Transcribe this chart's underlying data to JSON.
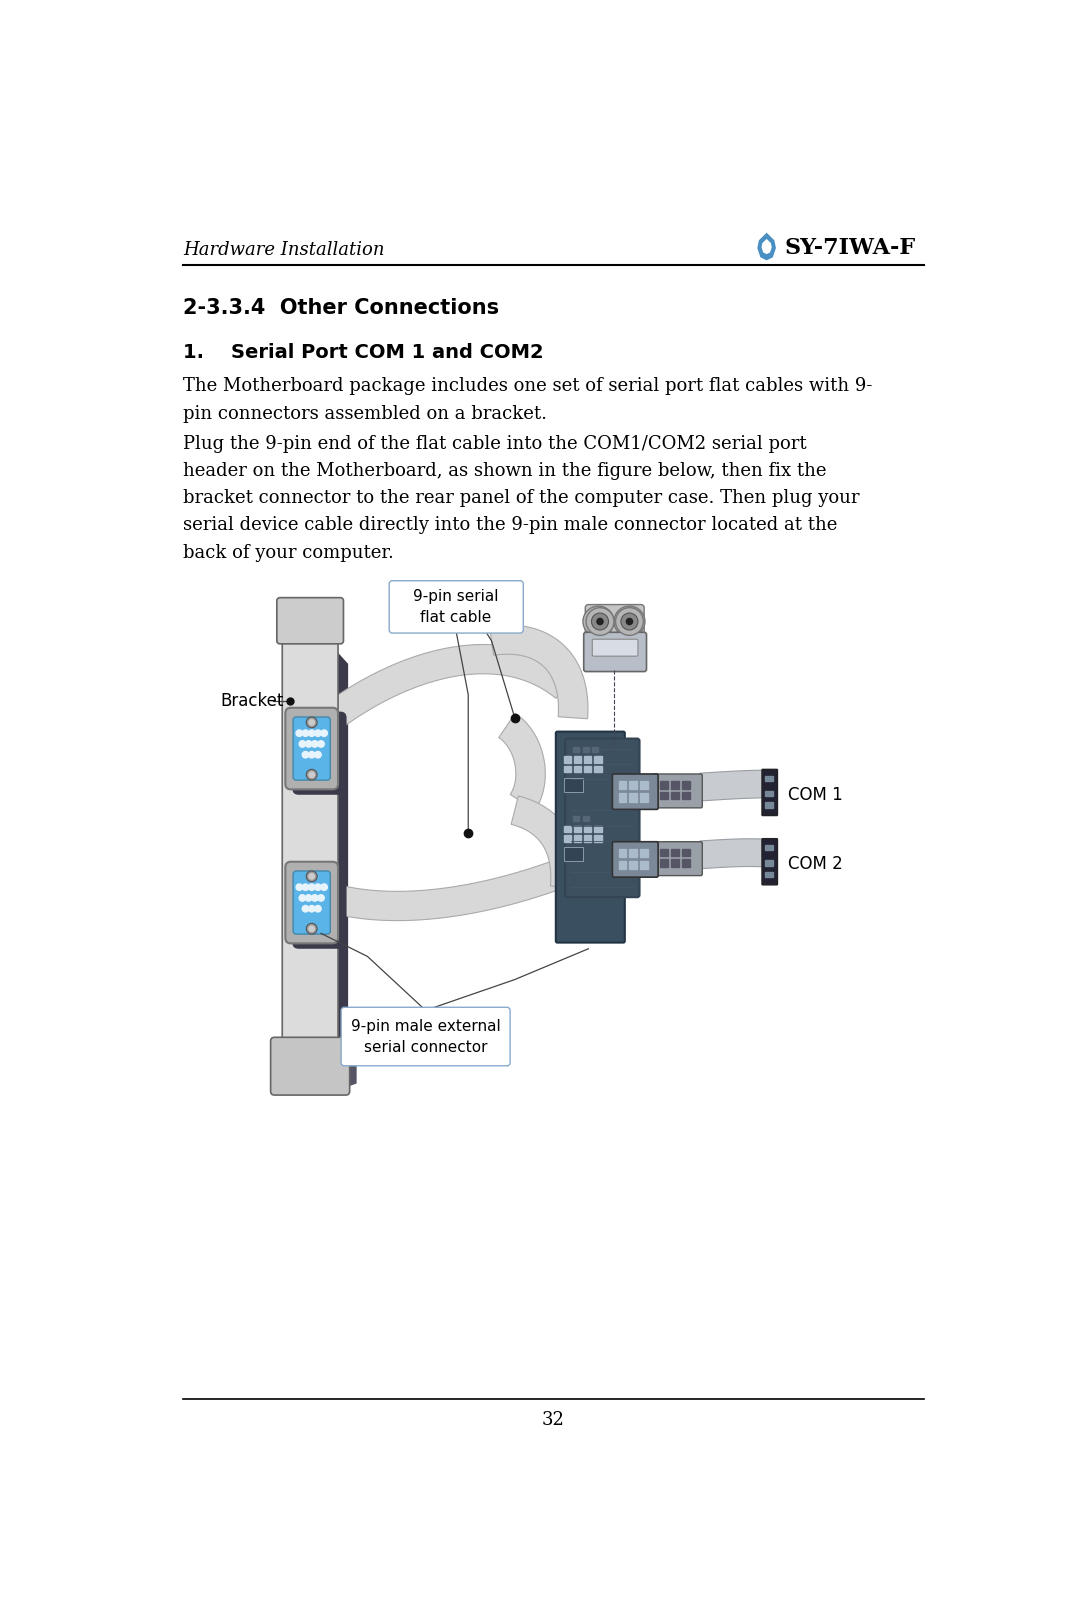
{
  "page_title_left": "Hardware Installation",
  "page_title_right": "SY-7IWA-F",
  "section_title": "2-3.3.4  Other Connections",
  "subsection_title": "1.    Serial Port COM 1 and COM2",
  "body_text_1": "The Motherboard package includes one set of serial port flat cables with 9-\npin connectors assembled on a bracket.",
  "body_text_2": "Plug the 9-pin end of the flat cable into the COM1/COM2 serial port\nheader on the Motherboard, as shown in the figure below, then fix the\nbracket connector to the rear panel of the computer case. Then plug your\nserial device cable directly into the 9-pin male connector located at the\nback of your computer.",
  "label_9pin_serial": "9-pin serial\nflat cable",
  "label_bracket": "Bracket",
  "label_9pin_male": "9-pin male external\nserial connector",
  "label_com1": "COM 1",
  "label_com2": "COM 2",
  "page_number": "32",
  "bg_color": "#ffffff",
  "text_color": "#000000",
  "header_line_color": "#000000",
  "footer_line_color": "#000000",
  "soyo_blue": "#4a8fc4",
  "bracket_fill": "#dcdcdc",
  "bracket_edge": "#666666",
  "bracket_dark": "#3a3a4a",
  "cable_fill": "#d8d8d8",
  "cable_edge": "#aaaaaa",
  "db9_outer": "#b0b0b0",
  "db9_inner_blue": "#5ab4e8",
  "db9_pin": "#e8f4fc",
  "pcb_teal": "#3a5060",
  "com_block_gray": "#888898",
  "com_block_dark": "#222233"
}
